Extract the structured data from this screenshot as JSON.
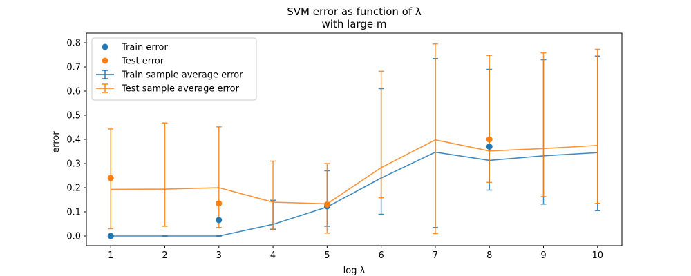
{
  "chart_data": {
    "type": "line",
    "title": "SVM error as function of λ",
    "subtitle": "with large m",
    "xlabel": "log λ",
    "ylabel": "error",
    "xlim": [
      0.55,
      10.45
    ],
    "ylim": [
      -0.04,
      0.84
    ],
    "xticks": [
      1,
      2,
      3,
      4,
      5,
      6,
      7,
      8,
      9,
      10
    ],
    "yticks": [
      0.0,
      0.1,
      0.2,
      0.3,
      0.4,
      0.5,
      0.6,
      0.7,
      0.8
    ],
    "ytick_labels": [
      "0.0",
      "0.1",
      "0.2",
      "0.3",
      "0.4",
      "0.5",
      "0.6",
      "0.7",
      "0.8"
    ],
    "legend_position": "top-left",
    "grid": false,
    "series": [
      {
        "name": "Train sample average error",
        "kind": "errorbar",
        "color": "#1f77b4",
        "x": [
          1,
          2,
          3,
          4,
          5,
          6,
          7,
          8,
          9,
          10
        ],
        "y": [
          0.0,
          0.0,
          0.0,
          0.048,
          0.12,
          0.24,
          0.347,
          0.313,
          0.332,
          0.345
        ],
        "lower": [
          0.0,
          0.0,
          0.0,
          0.028,
          0.04,
          0.09,
          0.035,
          0.19,
          0.132,
          0.105
        ],
        "upper": [
          0.0,
          0.0,
          0.0,
          0.148,
          0.27,
          0.61,
          0.735,
          0.69,
          0.73,
          0.745
        ]
      },
      {
        "name": "Test sample average error",
        "kind": "errorbar",
        "color": "#ff7f0e",
        "x": [
          1,
          2,
          3,
          4,
          5,
          6,
          7,
          8,
          9,
          10
        ],
        "y": [
          0.193,
          0.194,
          0.2,
          0.14,
          0.133,
          0.283,
          0.398,
          0.352,
          0.362,
          0.375
        ],
        "lower": [
          0.03,
          0.04,
          0.035,
          0.025,
          0.012,
          0.158,
          0.01,
          0.222,
          0.163,
          0.135
        ],
        "upper": [
          0.443,
          0.468,
          0.452,
          0.31,
          0.3,
          0.682,
          0.795,
          0.748,
          0.758,
          0.773
        ]
      },
      {
        "name": "Train error",
        "kind": "scatter",
        "color": "#1f77b4",
        "x": [
          1,
          3,
          5,
          8
        ],
        "y": [
          0.0,
          0.066,
          0.123,
          0.37
        ]
      },
      {
        "name": "Test error",
        "kind": "scatter",
        "color": "#ff7f0e",
        "x": [
          1,
          3,
          5,
          8
        ],
        "y": [
          0.24,
          0.135,
          0.13,
          0.4
        ]
      }
    ]
  }
}
